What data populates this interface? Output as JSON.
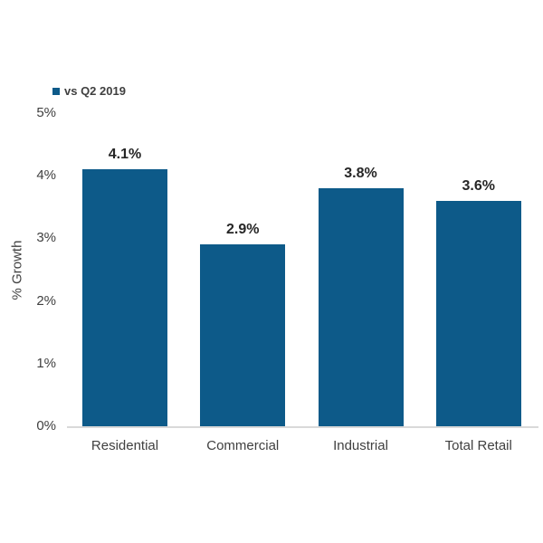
{
  "chart_data": {
    "type": "bar",
    "title": "",
    "categories": [
      "Residential",
      "Commercial",
      "Industrial",
      "Total Retail"
    ],
    "series": [
      {
        "name": "vs Q2 2019",
        "values": [
          4.1,
          2.9,
          3.8,
          3.6
        ]
      }
    ],
    "value_labels": [
      "4.1%",
      "2.9%",
      "3.8%",
      "3.6%"
    ],
    "xlabel": "",
    "ylabel": "% Growth",
    "ylim": [
      0,
      5
    ],
    "yticks": [
      "0%",
      "1%",
      "2%",
      "3%",
      "4%",
      "5%"
    ],
    "grid": false,
    "legend_position": "top-left"
  },
  "legend": {
    "label": "vs Q2 2019"
  },
  "colors": {
    "bar": "#0d5a89",
    "axis_line": "#d9d9d9",
    "tick_text": "#404040",
    "data_label": "#262626"
  }
}
